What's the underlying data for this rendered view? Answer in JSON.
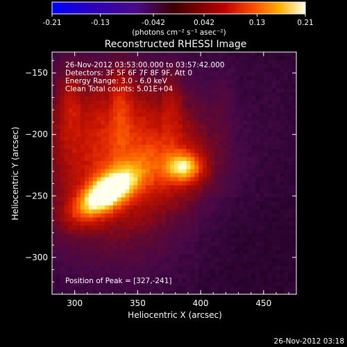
{
  "colorbar": {
    "ticks": [
      {
        "value": -0.21,
        "label": "-0.21"
      },
      {
        "value": -0.13,
        "label": "-0.13"
      },
      {
        "value": -0.042,
        "label": "-0.042"
      },
      {
        "value": 0.042,
        "label": "0.042"
      },
      {
        "value": 0.13,
        "label": "0.13"
      },
      {
        "value": 0.21,
        "label": "0.21"
      }
    ],
    "range": [
      -0.21,
      0.21
    ],
    "unit_label": "(photons cm⁻² s⁻¹ asec⁻²)"
  },
  "chart_data": {
    "type": "heatmap",
    "title": "Reconstructed RHESSI Image",
    "xlabel": "Heliocentric X (arcsec)",
    "ylabel": "Heliocentric Y (arcsec)",
    "xlim": [
      282,
      476
    ],
    "ylim": [
      -330,
      -133
    ],
    "xticks": [
      300,
      350,
      400,
      450
    ],
    "yticks": [
      -150,
      -200,
      -250,
      -300
    ],
    "sources": [
      {
        "x": 325,
        "y": -248,
        "peak": 0.21
      },
      {
        "x": 387,
        "y": -227,
        "peak": 0.12
      }
    ],
    "annotations": [
      "26-Nov-2012 03:53:00.000 to 03:57:42.000",
      "Detectors: 3F 5F 6F 7F 8F 9F, Att 0",
      "Energy Range: 3.0 - 6.0 keV",
      "Clean     Total counts: 5.01E+04"
    ],
    "peak_label": "Position of Peak = [327,-241]"
  },
  "footer": {
    "timestamp": "26-Nov-2012 03:18"
  }
}
